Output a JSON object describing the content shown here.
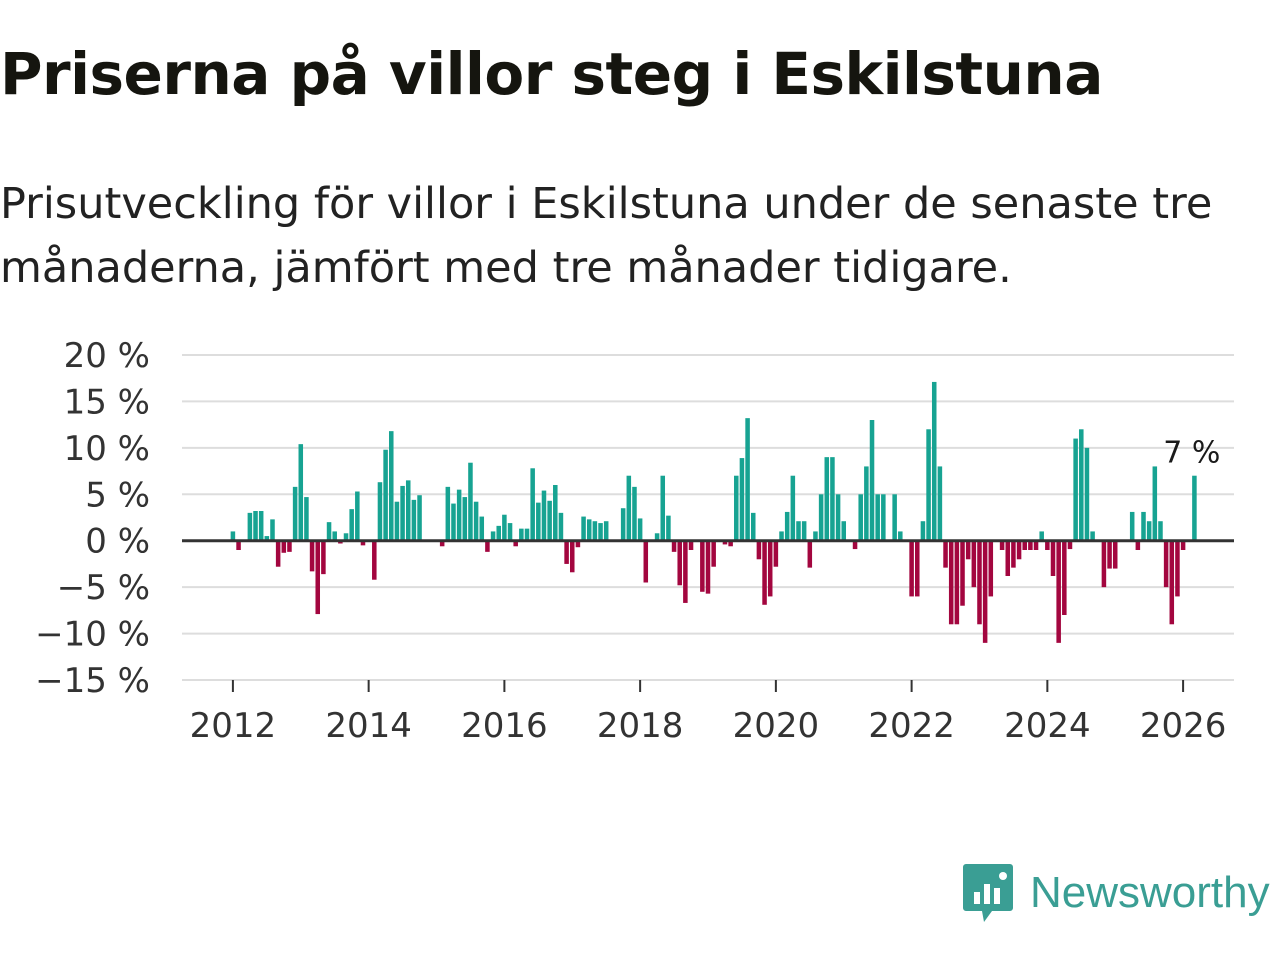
{
  "title": "Priserna på villor steg i Eskilstuna",
  "subtitle": "Prisutveckling för villor i Eskilstuna under de senaste tre månaderna, jämfört med tre månader tidigare.",
  "brand": {
    "name": "Newsworthy",
    "color": "#3a9e94",
    "icon": "newsworthy-logo-icon"
  },
  "colors": {
    "positive": "#17a392",
    "negative": "#a3063f",
    "grid": "#dddddd",
    "zero": "#333333"
  },
  "chart_data": {
    "type": "bar",
    "title": "Priserna på villor steg i Eskilstuna",
    "xlabel": "",
    "ylabel": "",
    "ylim": [
      -15,
      20
    ],
    "y_ticks": [
      20,
      15,
      10,
      5,
      0,
      -5,
      -10,
      -15
    ],
    "y_tick_labels": [
      "20 %",
      "15 %",
      "10 %",
      "5 %",
      "0 %",
      "−5 %",
      "−10 %",
      "−15 %"
    ],
    "x_range": [
      2011.25,
      2026.75
    ],
    "x_ticks": [
      2012,
      2014,
      2016,
      2018,
      2020,
      2022,
      2024,
      2026
    ],
    "x_tick_labels": [
      "2012",
      "2014",
      "2016",
      "2018",
      "2020",
      "2022",
      "2024",
      "2026"
    ],
    "start_year": 2012,
    "start_month": 1,
    "series": [
      {
        "name": "Prisutveckling",
        "values": [
          1,
          -1,
          0,
          3,
          3.2,
          3.2,
          0.5,
          2.3,
          -2.8,
          -1.3,
          -1.2,
          5.8,
          10.4,
          4.7,
          -3.3,
          -7.9,
          -3.6,
          2,
          1,
          -0.3,
          0.8,
          3.4,
          5.3,
          -0.5,
          0,
          -4.2,
          6.3,
          9.8,
          11.8,
          4.2,
          5.9,
          6.5,
          4.4,
          4.9,
          0,
          0,
          0,
          -0.6,
          5.8,
          4,
          5.5,
          4.7,
          8.4,
          4.2,
          2.6,
          -1.2,
          1,
          1.6,
          2.8,
          1.9,
          -0.6,
          1.3,
          1.3,
          7.8,
          4.1,
          5.4,
          4.3,
          6,
          3,
          -2.5,
          -3.4,
          -0.7,
          2.6,
          2.3,
          2.1,
          1.9,
          2.1,
          0,
          0,
          3.5,
          7,
          5.8,
          2.4,
          -4.5,
          0,
          0.8,
          7,
          2.7,
          -1.2,
          -4.8,
          -6.7,
          -1,
          0,
          -5.5,
          -5.7,
          -2.8,
          0,
          -0.4,
          -0.6,
          7,
          8.9,
          13.2,
          3,
          -2,
          -6.9,
          -6,
          -2.8,
          1,
          3.1,
          7,
          2.1,
          2.1,
          -2.9,
          1,
          5,
          9,
          9,
          5,
          2.1,
          0,
          -0.9,
          5,
          8,
          13,
          5,
          5,
          0,
          5,
          1,
          0,
          -6,
          -6,
          2.1,
          12,
          17.1,
          8,
          -2.9,
          -9,
          -9,
          -7,
          -2,
          -5,
          -9,
          -11,
          -6,
          0,
          -1,
          -3.8,
          -2.9,
          -2,
          -1,
          -1,
          -1,
          1,
          -1,
          -3.8,
          -11,
          -8,
          -0.9,
          11,
          12,
          10,
          1,
          0,
          -5,
          -3,
          -3,
          0,
          0,
          3.1,
          -1,
          3.1,
          2.1,
          8,
          2.1,
          -5,
          -9,
          -6,
          -1,
          0,
          7
        ]
      }
    ],
    "last_value_label": "7 %"
  }
}
